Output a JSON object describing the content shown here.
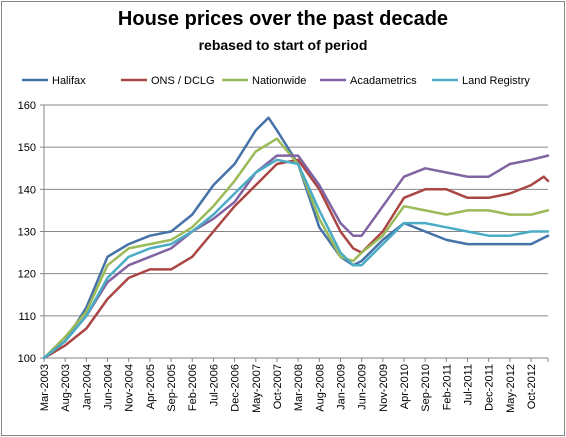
{
  "chart_data": {
    "type": "line",
    "title": "House prices over the past decade",
    "subtitle": "rebased to start of period",
    "xlabel": "",
    "ylabel": "",
    "ylim": [
      100,
      160
    ],
    "yticks": [
      100,
      110,
      120,
      130,
      140,
      150,
      160
    ],
    "grid": true,
    "legend_position": "top",
    "x_tick_labels": [
      "Mar-2003",
      "Aug-2003",
      "Jan-2004",
      "Jun-2004",
      "Nov-2004",
      "Apr-2005",
      "Sep-2005",
      "Feb-2006",
      "Jul-2006",
      "Dec-2006",
      "May-2007",
      "Oct-2007",
      "Mar-2008",
      "Aug-2008",
      "Jan-2009",
      "Jun-2009",
      "Nov-2009",
      "Apr-2010",
      "Sep-2010",
      "Feb-2011",
      "Jul-2011",
      "Dec-2011",
      "May-2012",
      "Oct-2012"
    ],
    "x_start": "Mar-2003",
    "x_end": "Feb-2013",
    "x_interval_months": 5,
    "series": [
      {
        "name": "Halifax",
        "color": "#4572A7",
        "x": [
          "Mar-2003",
          "Aug-2003",
          "Jan-2004",
          "Jun-2004",
          "Nov-2004",
          "Apr-2005",
          "Sep-2005",
          "Feb-2006",
          "Jul-2006",
          "Dec-2006",
          "May-2007",
          "Aug-2007",
          "Oct-2007",
          "Mar-2008",
          "Aug-2008",
          "Jan-2009",
          "Apr-2009",
          "Jun-2009",
          "Nov-2009",
          "Apr-2010",
          "Sep-2010",
          "Feb-2011",
          "Jul-2011",
          "Dec-2011",
          "May-2012",
          "Oct-2012",
          "Feb-2013"
        ],
        "values": [
          100,
          104,
          112,
          124,
          127,
          129,
          130,
          134,
          141,
          146,
          154,
          157,
          154,
          146,
          131,
          124,
          122,
          123,
          128,
          132,
          130,
          128,
          127,
          127,
          127,
          127,
          129
        ]
      },
      {
        "name": "ONS / DCLG",
        "color": "#AA4643",
        "x": [
          "Mar-2003",
          "Aug-2003",
          "Jan-2004",
          "Jun-2004",
          "Nov-2004",
          "Apr-2005",
          "Sep-2005",
          "Feb-2006",
          "Jul-2006",
          "Dec-2006",
          "May-2007",
          "Oct-2007",
          "Mar-2008",
          "Aug-2008",
          "Jan-2009",
          "Apr-2009",
          "Jun-2009",
          "Nov-2009",
          "Apr-2010",
          "Sep-2010",
          "Feb-2011",
          "Jul-2011",
          "Dec-2011",
          "May-2012",
          "Oct-2012",
          "Jan-2013",
          "Feb-2013"
        ],
        "values": [
          100,
          103,
          107,
          114,
          119,
          121,
          121,
          124,
          130,
          136,
          141,
          146,
          147,
          140,
          130,
          126,
          125,
          130,
          138,
          140,
          140,
          138,
          138,
          139,
          141,
          143,
          142
        ]
      },
      {
        "name": "Nationwide",
        "color": "#9BBB59",
        "x": [
          "Mar-2003",
          "Aug-2003",
          "Jan-2004",
          "Jun-2004",
          "Nov-2004",
          "Apr-2005",
          "Sep-2005",
          "Feb-2006",
          "Jul-2006",
          "Dec-2006",
          "May-2007",
          "Oct-2007",
          "Mar-2008",
          "Aug-2008",
          "Jan-2009",
          "Apr-2009",
          "Jun-2009",
          "Nov-2009",
          "Apr-2010",
          "Sep-2010",
          "Feb-2011",
          "Jul-2011",
          "Dec-2011",
          "May-2012",
          "Oct-2012",
          "Feb-2013"
        ],
        "values": [
          100,
          105,
          111,
          122,
          126,
          127,
          128,
          131,
          136,
          142,
          149,
          152,
          146,
          133,
          124,
          123,
          125,
          129,
          136,
          135,
          134,
          135,
          135,
          134,
          134,
          135
        ]
      },
      {
        "name": "Acadametrics",
        "color": "#8064A2",
        "x": [
          "Mar-2003",
          "Aug-2003",
          "Jan-2004",
          "Jun-2004",
          "Nov-2004",
          "Apr-2005",
          "Sep-2005",
          "Feb-2006",
          "Jul-2006",
          "Dec-2006",
          "May-2007",
          "Oct-2007",
          "Mar-2008",
          "Aug-2008",
          "Jan-2009",
          "Apr-2009",
          "Jun-2009",
          "Nov-2009",
          "Apr-2010",
          "Sep-2010",
          "Feb-2011",
          "Jul-2011",
          "Dec-2011",
          "May-2012",
          "Oct-2012",
          "Feb-2013"
        ],
        "values": [
          100,
          104,
          110,
          118,
          122,
          124,
          126,
          130,
          133,
          137,
          144,
          148,
          148,
          141,
          132,
          129,
          129,
          136,
          143,
          145,
          144,
          143,
          143,
          146,
          147,
          148
        ]
      },
      {
        "name": "Land Registry",
        "color": "#4BACC6",
        "x": [
          "Mar-2003",
          "Aug-2003",
          "Jan-2004",
          "Jun-2004",
          "Nov-2004",
          "Apr-2005",
          "Sep-2005",
          "Feb-2006",
          "Jul-2006",
          "Dec-2006",
          "May-2007",
          "Oct-2007",
          "Mar-2008",
          "Aug-2008",
          "Jan-2009",
          "Apr-2009",
          "Jun-2009",
          "Nov-2009",
          "Apr-2010",
          "Sep-2010",
          "Feb-2011",
          "Jul-2011",
          "Dec-2011",
          "May-2012",
          "Oct-2012",
          "Feb-2013"
        ],
        "values": [
          100,
          104,
          110,
          119,
          124,
          126,
          127,
          130,
          134,
          139,
          144,
          147,
          146,
          135,
          125,
          122,
          122,
          127,
          132,
          132,
          131,
          130,
          129,
          129,
          130,
          130
        ]
      }
    ]
  }
}
